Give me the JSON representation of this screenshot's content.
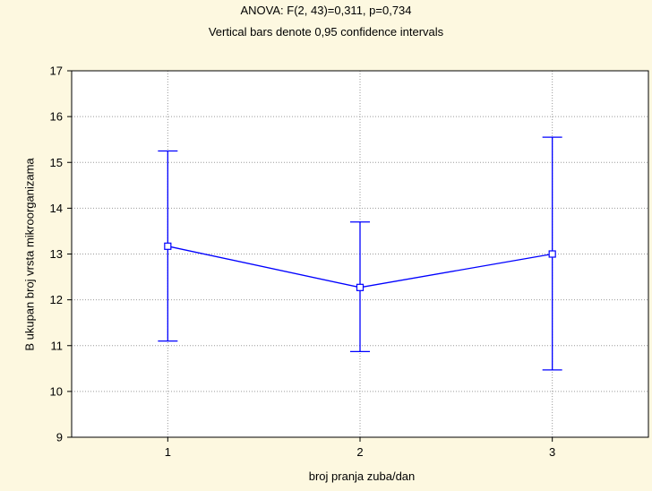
{
  "chart_data": {
    "type": "line",
    "title": "ANOVA: F(2, 43)=0,311, p=0,734",
    "subtitle": "Vertical bars denote 0,95 confidence intervals",
    "xlabel": "broj pranja zuba/dan",
    "ylabel": "B ukupan broj vrsta mikroorganizama",
    "categories": [
      "1",
      "2",
      "3"
    ],
    "ylim": [
      9,
      17
    ],
    "yticks": [
      "9",
      "10",
      "11",
      "12",
      "13",
      "14",
      "15",
      "16",
      "17"
    ],
    "grid": true,
    "series": [
      {
        "values": [
          13.17,
          12.27,
          13.0
        ],
        "ci_lower": [
          11.1,
          10.87,
          10.47
        ],
        "ci_upper": [
          15.25,
          13.7,
          15.55
        ],
        "color": "#0000ff"
      }
    ]
  }
}
